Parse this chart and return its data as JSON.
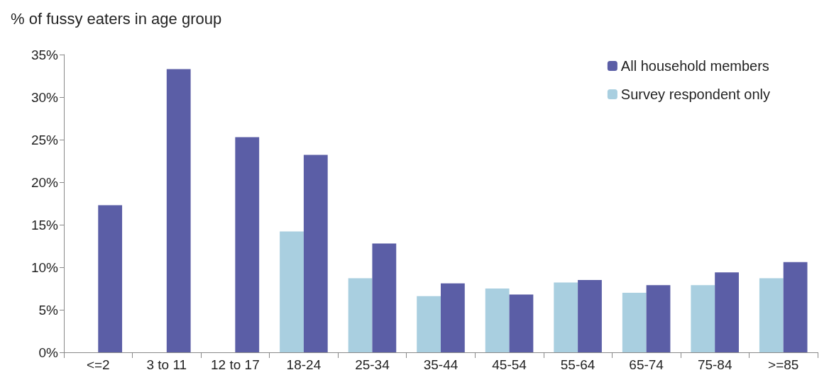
{
  "chart_data": {
    "type": "bar",
    "title": "% of fussy eaters in age group",
    "categories": [
      "<=2",
      "3 to 11",
      "12 to 17",
      "18-24",
      "25-34",
      "35-44",
      "45-54",
      "55-64",
      "65-74",
      "75-84",
      ">=85"
    ],
    "series": [
      {
        "name": "All household members",
        "color": "#5b5ea6",
        "values": [
          17.3,
          33.3,
          25.3,
          23.2,
          12.8,
          8.1,
          6.8,
          8.5,
          7.9,
          9.4,
          10.6
        ]
      },
      {
        "name": "Survey respondent only",
        "color": "#a9cfe0",
        "values": [
          null,
          null,
          null,
          14.2,
          8.7,
          6.6,
          7.5,
          8.2,
          7.0,
          7.9,
          8.7
        ]
      }
    ],
    "ylim": [
      0,
      35
    ],
    "yticks": [
      {
        "value": 0,
        "label": "0%"
      },
      {
        "value": 5,
        "label": "5%"
      },
      {
        "value": 10,
        "label": "10%"
      },
      {
        "value": 15,
        "label": "15%"
      },
      {
        "value": 20,
        "label": "20%"
      },
      {
        "value": 25,
        "label": "25%"
      },
      {
        "value": 30,
        "label": "30%"
      },
      {
        "value": 35,
        "label": "35%"
      }
    ],
    "legend": "top right"
  }
}
